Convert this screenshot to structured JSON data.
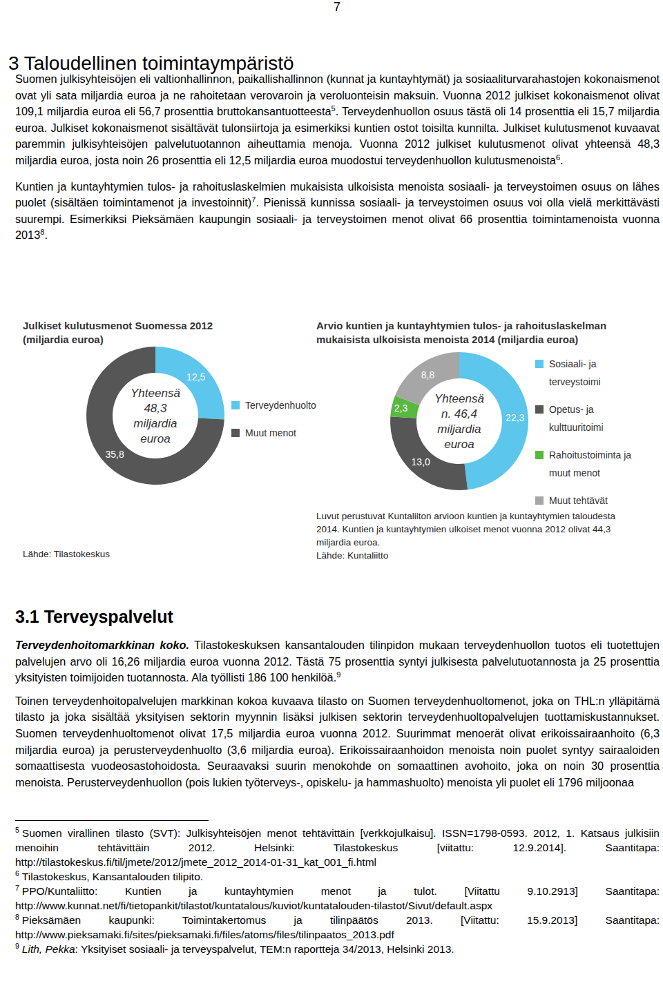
{
  "page": {
    "number": "7",
    "heading": "3 Taloudellinen toimintaympäristö",
    "section_paragraphs": [
      [
        {
          "text": "Suomen julkisyhteisöjen eli valtionhallinnon, paikallishallinnon (kunnat ja kuntayhtymät) ja sosiaaliturvarahastojen kokonaismenot ovat yli sata miljardia euroa ja ne rahoitetaan verovaroin ja veroluonteisin maksuin. Vuonna 2012 julkiset kokonaismenot olivat 109,1 miljardia euroa eli 56,7 prosenttia bruttokansantuotteesta"
        },
        {
          "sup": "5"
        },
        {
          "text": ". Terveydenhuollon osuus tästä oli 14 prosenttia eli 15,7 miljardia euroa. Julkiset kokonaismenot sisältävät tulonsiirtoja ja esimerkiksi kuntien ostot toisilta kunnilta. Julkiset kulutusmenot kuvaavat paremmin julkisyhteisöjen palvelutuotannon aiheuttamia menoja. Vuonna 2012 julkiset kulutusmenot olivat yhteensä 48,3 miljardia euroa, josta noin 26 prosenttia eli 12,5 miljardia euroa muodostui terveydenhuollon kulutusmenoista"
        },
        {
          "sup": "6"
        },
        {
          "text": "."
        }
      ],
      [
        {
          "text": "Kuntien ja kuntayhtymien tulos- ja rahoituslaskelmien mukaisista ulkoisista menoista sosiaali- ja terveystoimen osuus on lähes puolet (sisältäen toimintamenot ja investoinnit)"
        },
        {
          "sup": "7"
        },
        {
          "text": ". Pienissä kunnissa sosiaali- ja terveystoimen osuus voi olla vielä merkittävästi suurempi. Esimerkiksi Pieksämäen kaupungin sosiaali- ja terveystoimen menot olivat 66 prosenttia toimintamenoista vuonna 2013"
        },
        {
          "sup": "8"
        },
        {
          "text": "."
        }
      ]
    ],
    "subheading": "3.1 Terveyspalvelut",
    "subsection_paragraphs": [
      [
        {
          "text": "Terveydenhoitomarkkinan koko.",
          "style": "bold-italic"
        },
        {
          "text": " Tilastokeskuksen kansantalouden tilinpidon mukaan terveydenhuollon tuotos eli tuotettujen palvelujen arvo oli 16,26 miljardia euroa vuonna 2012. Tästä 75 prosenttia syntyi julkisesta palvelutuotannosta ja 25 prosenttia yksityisten toimijoiden tuotannosta. Ala työllisti 186 100 henkilöä."
        },
        {
          "sup": "9"
        }
      ],
      [
        {
          "text": "Toinen terveydenhoitopalvelujen markkinan kokoa kuvaava tilasto on Suomen terveydenhuoltomenot, joka on THL:n ylläpitämä tilasto ja joka sisältää yksityisen sektorin myynnin lisäksi julkisen sektorin terveydenhuoltopalvelujen tuottamiskustannukset. Suomen terveydenhuoltomenot olivat 17,5 miljardia euroa vuonna 2012. Suurimmat menoerät olivat erikoissairaanhoito (6,3 miljardia euroa) ja perusterveydenhuolto (3,6 miljardia euroa). Erikoissairaanhoidon menoista noin puolet syntyy sairaaloiden somaattisesta vuodeosastohoidosta. Seuraavaksi suurin menokohde on somaattinen avohoito, joka on noin 30 prosenttia menoista. Perusterveydenhuollon (pois lukien työterveys-, opiskelu- ja hammashuolto) menoista yli puolet eli 1796 miljoonaa"
        }
      ]
    ],
    "footnotes": [
      {
        "num": "5",
        "segments": [
          {
            "text": "Suomen virallinen tilasto (SVT): Julkisyhteisöjen menot tehtävittäin [verkkojulkaisu]. ISSN=1798-0593. 2012, 1. Katsaus julkisiin menoihin tehtävittäin 2012. Helsinki: Tilastokeskus [viitattu: 12.9.2014]. Saantitapa: http://tilastokeskus.fi/til/jmete/2012/jmete_2012_2014-01-31_kat_001_fi.html"
          }
        ]
      },
      {
        "num": "6",
        "segments": [
          {
            "text": "Tilastokeskus, Kansantalouden tilipito."
          }
        ]
      },
      {
        "num": "7",
        "segments": [
          {
            "text": "PPO/Kuntaliitto: Kuntien ja kuntayhtymien menot ja tulot. [Viitattu 9.10.2913] Saantitapa: http://www.kunnat.net/fi/tietopankit/tilastot/kuntatalous/kuviot/kuntatalouden-tilastot/Sivut/default.aspx"
          }
        ]
      },
      {
        "num": "8",
        "segments": [
          {
            "text": "Pieksämäen kaupunki: Toimintakertomus ja tilinpäätös 2013. [Viitattu: 15.9.2013] Saantitapa: http://www.pieksamaki.fi/sites/pieksamaki.fi/files/atoms/files/tilinpaatos_2013.pdf"
          }
        ]
      },
      {
        "num": "9",
        "segments": [
          {
            "text": "Lith, Pekka",
            "style": "italic"
          },
          {
            "text": ": Yksityiset sosiaali- ja terveyspalvelut, TEM:n raportteja 34/2013, Helsinki 2013."
          }
        ]
      }
    ]
  },
  "chart_data": [
    {
      "type": "donut",
      "title": [
        "Julkiset kulutusmenot Suomessa 2012",
        "(miljardia euroa)"
      ],
      "center_text": [
        "Yhteensä",
        "48,3",
        "miljardia",
        "euroa"
      ],
      "categories": [
        "Terveydenhuolto",
        "Muut menot"
      ],
      "values": [
        12.5,
        35.8
      ],
      "value_labels": [
        "12,5",
        "35,8"
      ],
      "colors": [
        "#5cc6ec",
        "#565656"
      ],
      "data_labels": true,
      "legend": "right",
      "source": "Lähde: Tilastokeskus"
    },
    {
      "type": "donut",
      "title": [
        "Arvio kuntien ja kuntayhtymien tulos- ja rahoituslaskelman",
        "mukaisista ulkoisista menoista 2014 (miljardia euroa)"
      ],
      "center_text": [
        "Yhteensä",
        "n. 46,4",
        "miljardia",
        "euroa"
      ],
      "categories": [
        "Sosiaali- ja terveystoimi",
        "Opetus- ja kulttuuritoimi",
        "Rahoitustoiminta ja muut menot",
        "Muut tehtävät"
      ],
      "values": [
        22.3,
        13.0,
        2.3,
        8.8
      ],
      "value_labels": [
        "22,3",
        "13,0",
        "2,3",
        "8,8"
      ],
      "colors": [
        "#5cc6ec",
        "#565656",
        "#58b840",
        "#a6a6a6"
      ],
      "data_labels": true,
      "legend": "right",
      "note": "Luvut perustuvat Kuntaliiton arvioon kuntien ja kuntayhtymien taloudesta 2014. Kuntien ja kuntayhtymien ulkoiset menot vuonna 2012 olivat 44,3 miljardia euroa.",
      "source": "Lähde: Kuntaliitto"
    }
  ]
}
